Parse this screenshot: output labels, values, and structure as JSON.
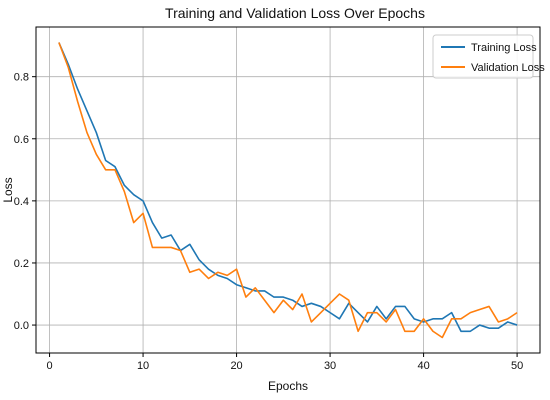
{
  "chart_data": {
    "type": "line",
    "title": "Training and Validation Loss Over Epochs",
    "xlabel": "Epochs",
    "ylabel": "Loss",
    "xlim": [
      -1.45,
      52.45
    ],
    "ylim": [
      -0.09,
      0.96
    ],
    "xticks": [
      0,
      10,
      20,
      30,
      40,
      50
    ],
    "yticks": [
      0.0,
      0.2,
      0.4,
      0.6,
      0.8
    ],
    "ytick_labels": [
      "0.0",
      "0.2",
      "0.4",
      "0.6",
      "0.8"
    ],
    "grid": true,
    "legend_position": "top-right",
    "x": [
      1,
      2,
      3,
      4,
      5,
      6,
      7,
      8,
      9,
      10,
      11,
      12,
      13,
      14,
      15,
      16,
      17,
      18,
      19,
      20,
      21,
      22,
      23,
      24,
      25,
      26,
      27,
      28,
      29,
      30,
      31,
      32,
      33,
      34,
      35,
      36,
      37,
      38,
      39,
      40,
      41,
      42,
      43,
      44,
      45,
      46,
      47,
      48,
      49,
      50
    ],
    "series": [
      {
        "name": "Training Loss",
        "color": "#1f77b4",
        "values": [
          0.91,
          0.84,
          0.76,
          0.69,
          0.62,
          0.53,
          0.51,
          0.45,
          0.42,
          0.4,
          0.33,
          0.28,
          0.29,
          0.24,
          0.26,
          0.21,
          0.18,
          0.16,
          0.15,
          0.13,
          0.12,
          0.11,
          0.11,
          0.09,
          0.09,
          0.08,
          0.06,
          0.07,
          0.06,
          0.04,
          0.02,
          0.07,
          0.04,
          0.01,
          0.06,
          0.02,
          0.06,
          0.06,
          0.02,
          0.01,
          0.02,
          0.02,
          0.04,
          -0.02,
          -0.02,
          0.0,
          -0.01,
          -0.01,
          0.01,
          0.0
        ]
      },
      {
        "name": "Validation Loss",
        "color": "#ff7f0e",
        "values": [
          0.91,
          0.83,
          0.72,
          0.62,
          0.55,
          0.5,
          0.5,
          0.43,
          0.33,
          0.36,
          0.25,
          0.25,
          0.25,
          0.24,
          0.17,
          0.18,
          0.15,
          0.17,
          0.16,
          0.18,
          0.09,
          0.12,
          0.08,
          0.04,
          0.08,
          0.05,
          0.1,
          0.01,
          0.04,
          0.07,
          0.1,
          0.08,
          -0.02,
          0.04,
          0.04,
          0.01,
          0.05,
          -0.02,
          -0.02,
          0.02,
          -0.02,
          -0.04,
          0.02,
          0.02,
          0.04,
          0.05,
          0.06,
          0.01,
          0.02,
          0.04
        ]
      }
    ]
  }
}
